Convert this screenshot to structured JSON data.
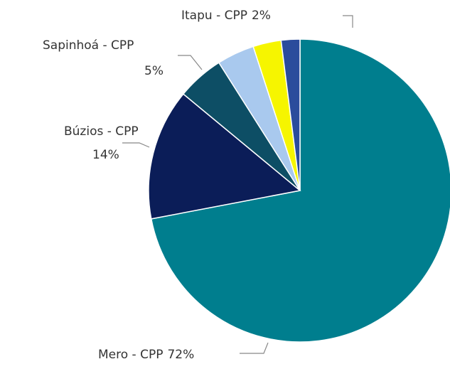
{
  "chart_data": {
    "type": "pie",
    "categories": [
      "Mero - CPP",
      "Búzios - CPP",
      "Sapinhoá - CPP",
      null,
      null,
      "Itapu - CPP"
    ],
    "values": [
      72,
      14,
      5,
      4,
      3,
      2
    ],
    "value_labels": [
      "72%",
      "14%",
      "5%",
      null,
      null,
      "2%"
    ],
    "colors": [
      "#007e8e",
      "#0b1d58",
      "#0d4e65",
      "#a9c9ee",
      "#f6f500",
      "#2b4c9c"
    ],
    "start_angle": 0,
    "direction": "clockwise"
  }
}
